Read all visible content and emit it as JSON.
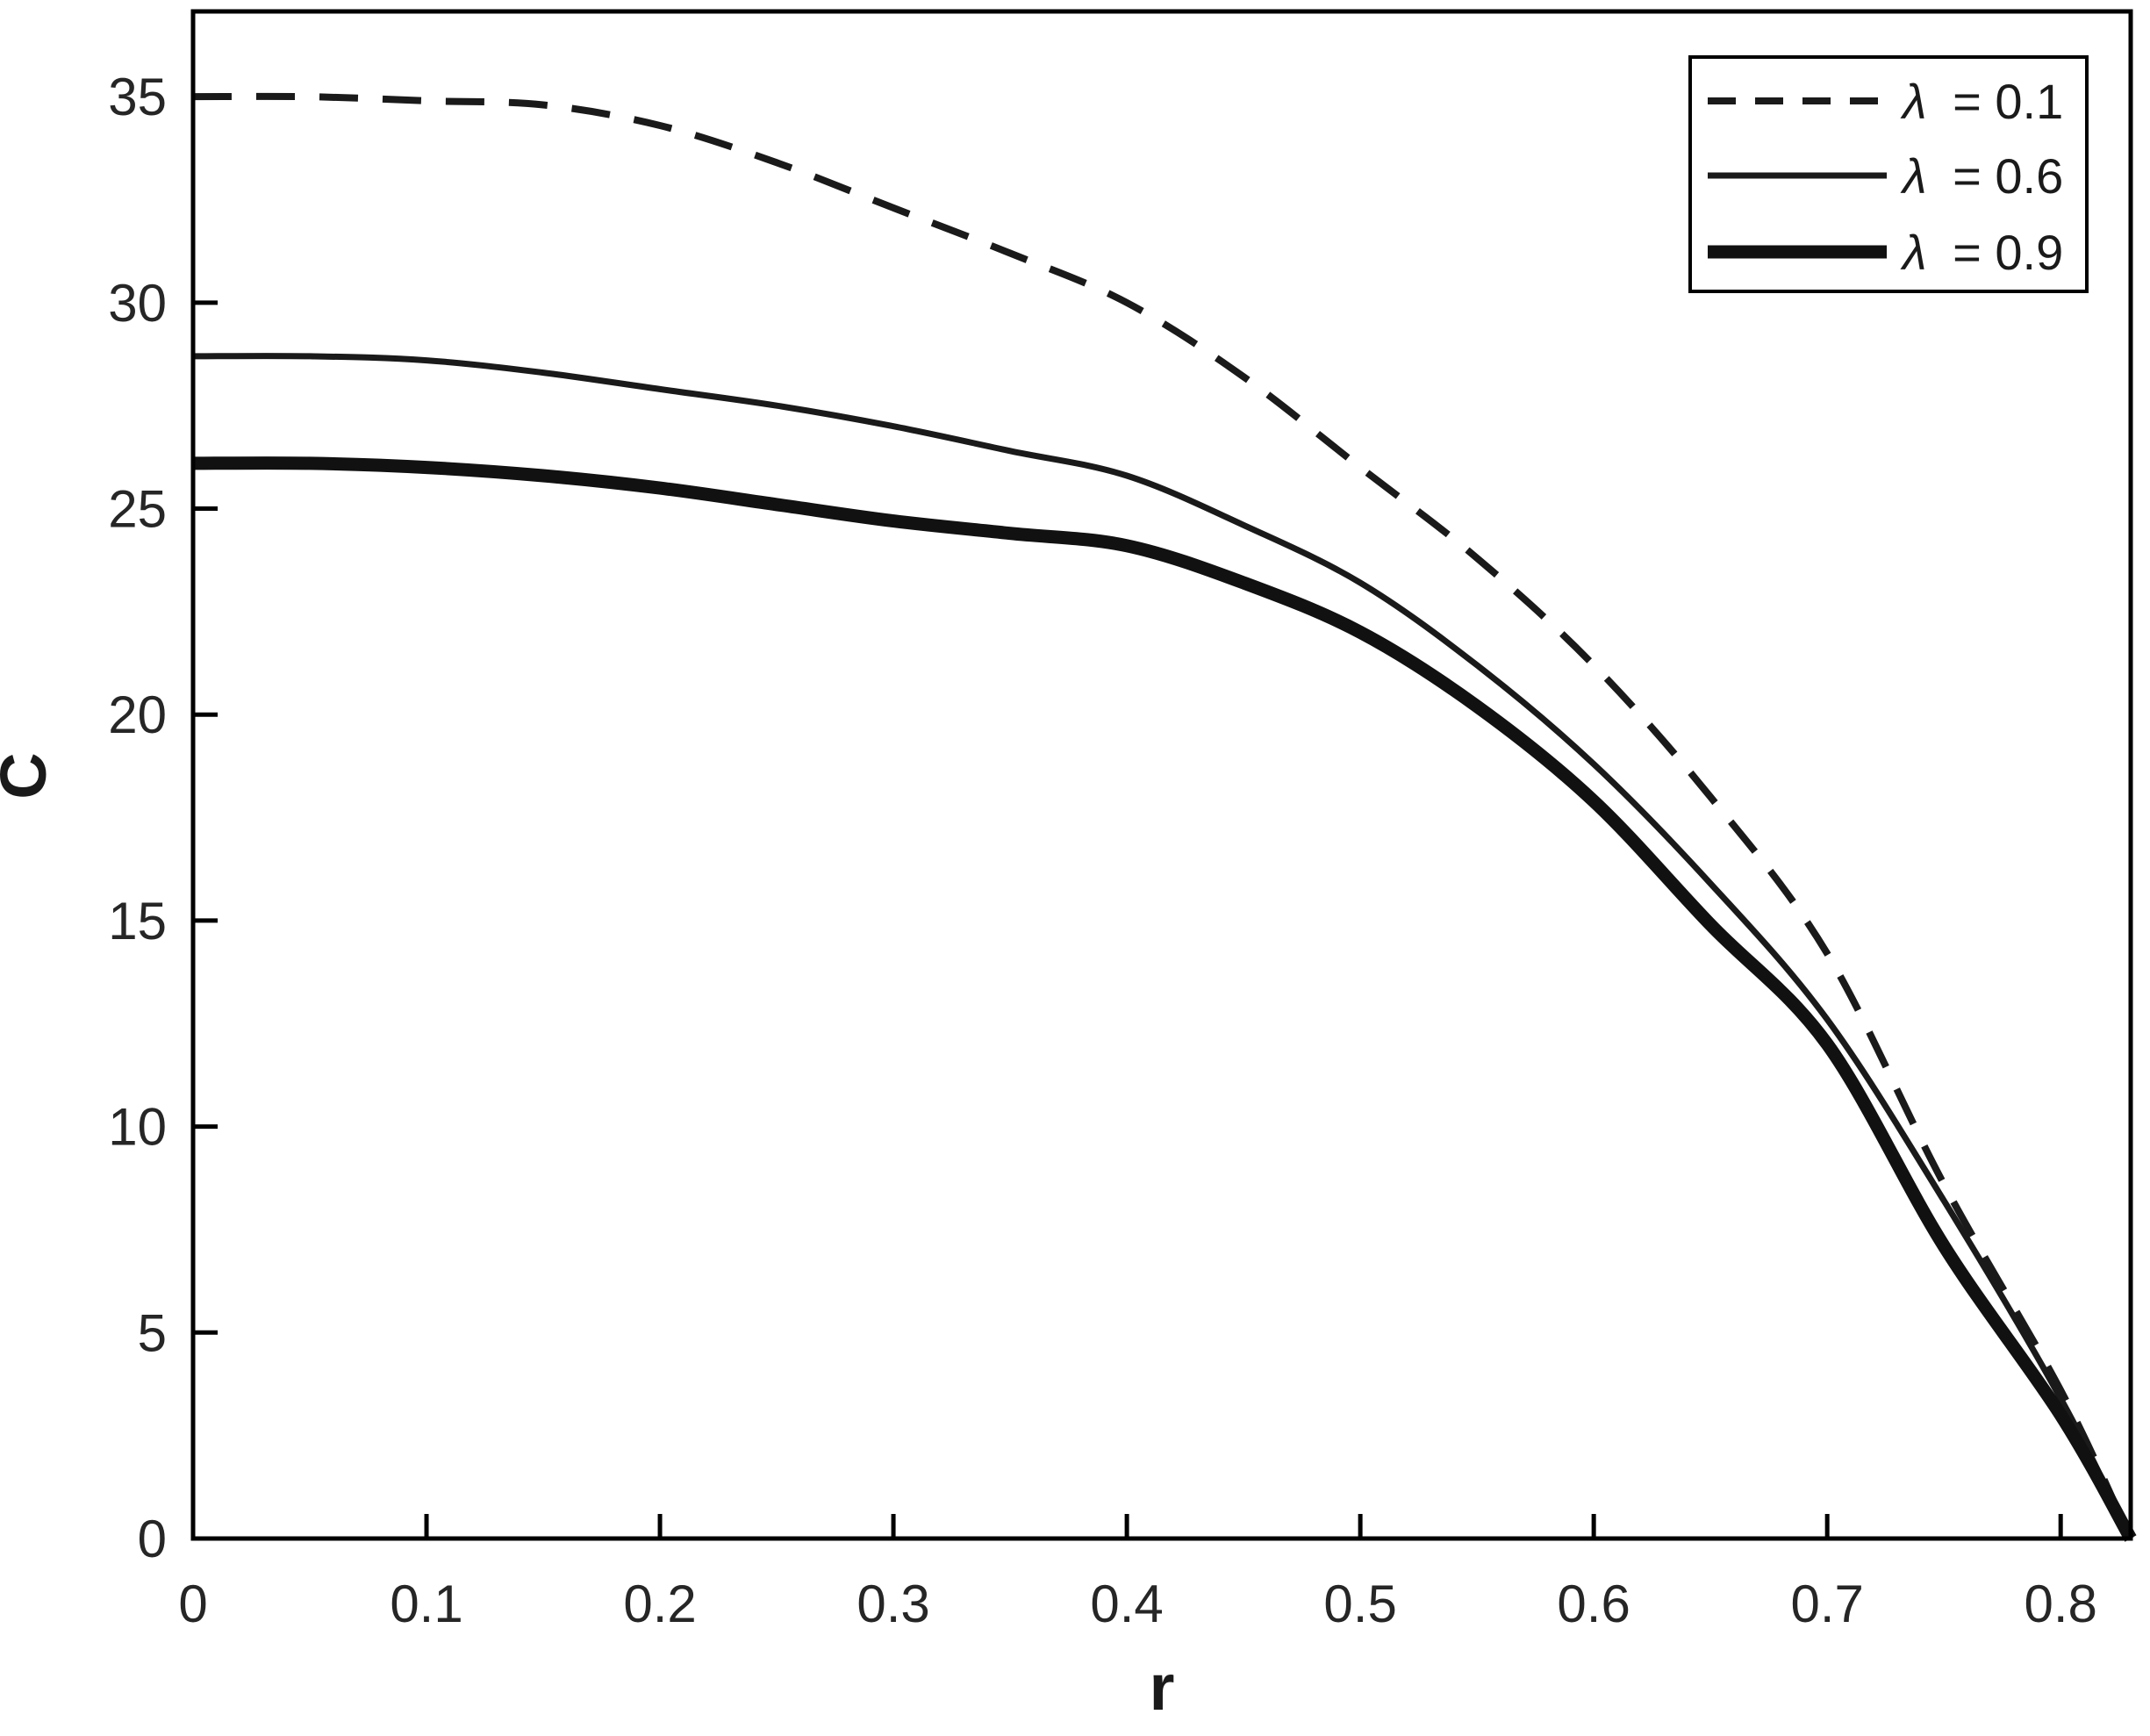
{
  "chart_data": {
    "type": "line",
    "title": "",
    "xlabel": "r",
    "ylabel": "C",
    "xlim": [
      0,
      0.83
    ],
    "ylim": [
      0,
      37.07
    ],
    "x_ticks": [
      "0",
      "0.1",
      "0.2",
      "0.3",
      "0.4",
      "0.5",
      "0.6",
      "0.7",
      "0.8"
    ],
    "y_ticks": [
      "0",
      "5",
      "10",
      "15",
      "20",
      "25",
      "30",
      "35"
    ],
    "grid": "off",
    "legend_position": "top-right",
    "x": [
      0,
      0.05,
      0.1,
      0.15,
      0.2,
      0.25,
      0.3,
      0.35,
      0.4,
      0.45,
      0.5,
      0.55,
      0.6,
      0.65,
      0.7,
      0.75,
      0.8,
      0.83
    ],
    "series": [
      {
        "name": "λ = 0.1",
        "symbol": "λ",
        "label_rest": "= 0.1",
        "line_style": "dashed",
        "line_width": 8,
        "color": "#1a1a1a",
        "values": [
          35.0,
          35.0,
          34.9,
          34.8,
          34.3,
          33.4,
          32.3,
          31.2,
          30.0,
          28.2,
          26.0,
          23.8,
          21.2,
          18.0,
          14.2,
          8.6,
          3.6,
          0
        ]
      },
      {
        "name": "λ = 0.6",
        "symbol": "λ",
        "label_rest": "= 0.6",
        "line_style": "solid",
        "line_width": 7,
        "color": "#1a1a1a",
        "values": [
          28.7,
          28.7,
          28.6,
          28.3,
          27.9,
          27.5,
          27.0,
          26.4,
          25.8,
          24.6,
          23.2,
          21.2,
          18.8,
          15.9,
          12.6,
          8.2,
          3.4,
          0
        ]
      },
      {
        "name": "λ = 0.9",
        "symbol": "λ",
        "label_rest": "= 0.9",
        "line_style": "solid",
        "line_width": 15,
        "color": "#111111",
        "values": [
          26.1,
          26.1,
          26.0,
          25.8,
          25.5,
          25.1,
          24.7,
          24.4,
          24.1,
          23.2,
          22.0,
          20.2,
          17.9,
          14.9,
          12.0,
          7.1,
          3.0,
          0
        ]
      }
    ],
    "axis_color": "#000000",
    "tick_label_color": "#262626",
    "background_color": "#ffffff"
  }
}
